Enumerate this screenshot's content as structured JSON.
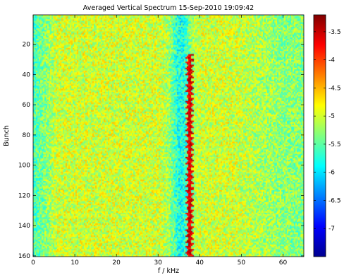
{
  "chart_data": {
    "type": "heatmap",
    "title": "Averaged Vertical Spectrum 15-Sep-2010 19:09:42",
    "xlabel": "f / kHz",
    "ylabel": "Bunch",
    "xlim": [
      0,
      65
    ],
    "ylim": [
      160,
      1
    ],
    "x_ticks": [
      0,
      10,
      20,
      30,
      40,
      50,
      60
    ],
    "y_ticks": [
      20,
      40,
      60,
      80,
      100,
      120,
      140,
      160
    ],
    "colorbar": {
      "colormap": "jet",
      "clim": [
        -7.5,
        -3.2
      ],
      "ticks": [
        -3.5,
        -4,
        -4.5,
        -5,
        -5.5,
        -6,
        -6.5,
        -7
      ],
      "tick_labels": [
        "-3.5",
        "-4",
        "-4.5",
        "-5",
        "-5.5",
        "-6",
        "-6.5",
        "-7"
      ]
    },
    "field": {
      "background_level": -5.0,
      "background_level_left_edge": -5.6,
      "background_level_high_f": -5.3,
      "low_band": {
        "f_center": 35.5,
        "width": 2.5,
        "level": -5.8,
        "bunch_start": 1,
        "bunch_end": 160
      },
      "line": {
        "f_center": 37.6,
        "width": 0.6,
        "level": -3.6,
        "bunch_start": 27,
        "bunch_end": 160
      },
      "noise_amplitude": 0.45
    }
  }
}
